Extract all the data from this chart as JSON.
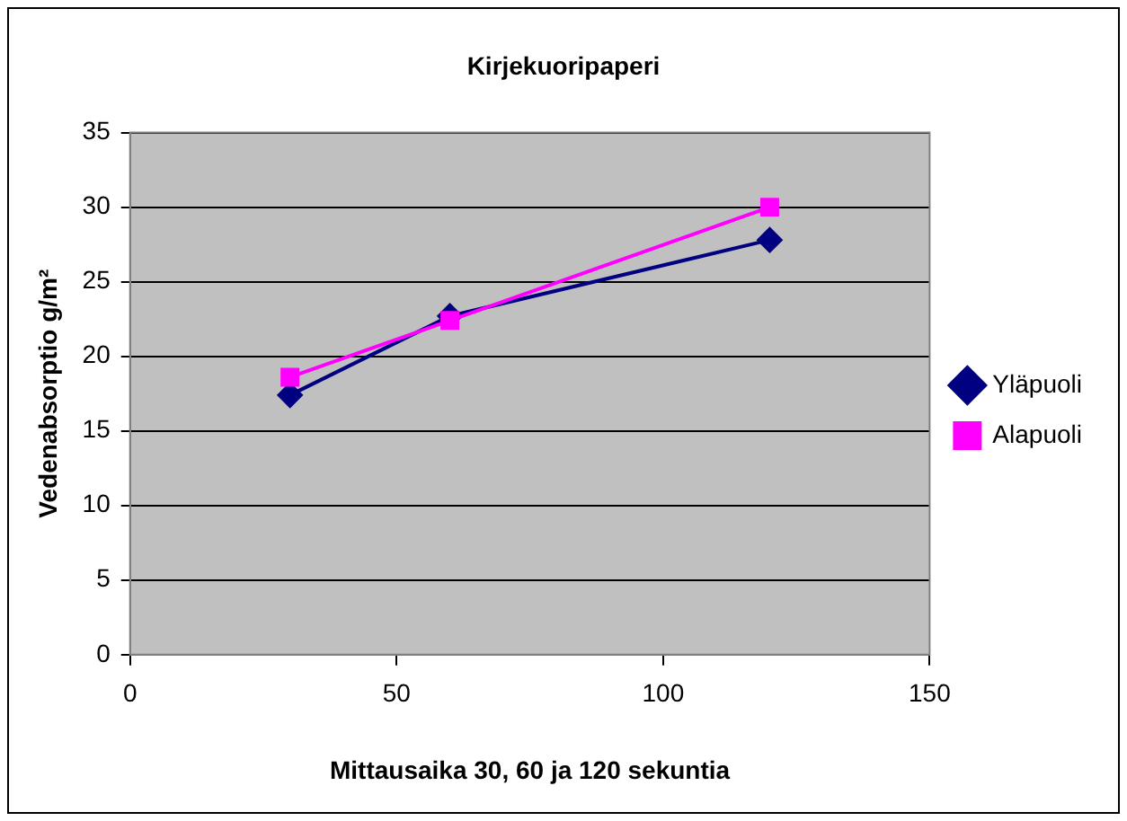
{
  "chart_data": {
    "type": "line",
    "title": "Kirjekuoripaperi",
    "xlabel": "Mittausaika 30, 60 ja 120 sekuntia",
    "ylabel": "Vedenabsorptio g/m²",
    "x": [
      30,
      60,
      120
    ],
    "series": [
      {
        "name": "Yläpuoli",
        "color": "#000080",
        "marker": "diamond",
        "values": [
          17.4,
          22.7,
          27.8
        ]
      },
      {
        "name": "Alapuoli",
        "color": "#ff00ff",
        "marker": "square",
        "values": [
          18.6,
          22.4,
          30
        ]
      }
    ],
    "xlim": [
      0,
      150
    ],
    "xticks": [
      0,
      50,
      100,
      150
    ],
    "ylim": [
      0,
      35
    ],
    "yticks": [
      0,
      5,
      10,
      15,
      20,
      25,
      30,
      35
    ],
    "grid": "y",
    "legend": "right"
  }
}
